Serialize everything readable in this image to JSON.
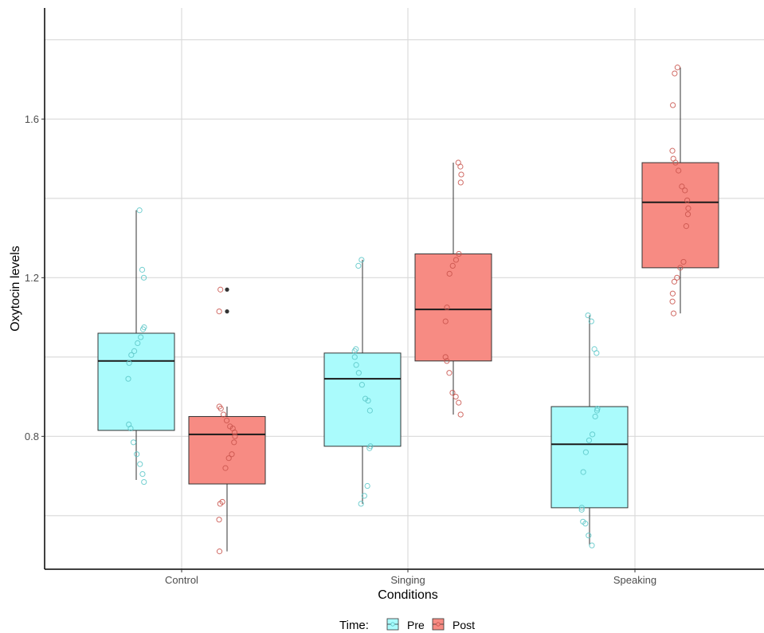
{
  "chart_data": {
    "type": "box",
    "title": "",
    "xlabel": "Conditions",
    "ylabel": "Oxytocin levels",
    "ylim": [
      0.465,
      1.88
    ],
    "y_ticks": [
      0.8,
      1.2,
      1.6
    ],
    "y_tick_labels": [
      "0.8",
      "1.2",
      "1.6"
    ],
    "y_minor_grid": [
      0.6,
      1.0,
      1.4,
      1.8
    ],
    "grid": true,
    "categories": [
      "Control",
      "Singing",
      "Speaking"
    ],
    "legend": {
      "title": "Time:",
      "position": "bottom",
      "items": [
        {
          "name": "Pre",
          "fill": "#aafbfc",
          "point": "#5cc7c8"
        },
        {
          "name": "Post",
          "fill": "#f78b83",
          "point": "#c9544c"
        }
      ]
    },
    "series": [
      {
        "name": "Pre",
        "boxes": [
          {
            "category": "Control",
            "whisker_low": 0.69,
            "q1": 0.815,
            "median": 0.99,
            "q3": 1.06,
            "whisker_high": 1.37,
            "outliers": []
          },
          {
            "category": "Singing",
            "whisker_low": 0.63,
            "q1": 0.775,
            "median": 0.945,
            "q3": 1.01,
            "whisker_high": 1.245,
            "outliers": []
          },
          {
            "category": "Speaking",
            "whisker_low": 0.525,
            "q1": 0.62,
            "median": 0.78,
            "q3": 0.875,
            "whisker_high": 1.105,
            "outliers": []
          }
        ],
        "points": [
          {
            "category": "Control",
            "values": [
              1.37,
              1.22,
              1.2,
              1.075,
              1.07,
              1.05,
              1.035,
              1.015,
              1.005,
              0.985,
              0.945,
              0.83,
              0.82,
              0.785,
              0.755,
              0.73,
              0.705,
              0.685
            ]
          },
          {
            "category": "Singing",
            "values": [
              1.245,
              1.23,
              1.02,
              1.015,
              1.0,
              0.98,
              0.96,
              0.93,
              0.895,
              0.89,
              0.865,
              0.775,
              0.77,
              0.675,
              0.65,
              0.63
            ]
          },
          {
            "category": "Speaking",
            "values": [
              1.105,
              1.09,
              1.02,
              1.01,
              0.87,
              0.865,
              0.85,
              0.805,
              0.79,
              0.76,
              0.71,
              0.62,
              0.615,
              0.585,
              0.58,
              0.55,
              0.525
            ]
          }
        ]
      },
      {
        "name": "Post",
        "boxes": [
          {
            "category": "Control",
            "whisker_low": 0.51,
            "q1": 0.68,
            "median": 0.805,
            "q3": 0.85,
            "whisker_high": 0.875,
            "outliers": [
              1.17,
              1.115
            ]
          },
          {
            "category": "Singing",
            "whisker_low": 0.855,
            "q1": 0.99,
            "median": 1.12,
            "q3": 1.26,
            "whisker_high": 1.49,
            "outliers": []
          },
          {
            "category": "Speaking",
            "whisker_low": 1.11,
            "q1": 1.225,
            "median": 1.39,
            "q3": 1.49,
            "whisker_high": 1.73,
            "outliers": []
          }
        ],
        "points": [
          {
            "category": "Control",
            "values": [
              1.17,
              1.115,
              0.875,
              0.87,
              0.855,
              0.84,
              0.825,
              0.82,
              0.81,
              0.8,
              0.785,
              0.755,
              0.745,
              0.72,
              0.635,
              0.63,
              0.59,
              0.51
            ]
          },
          {
            "category": "Singing",
            "values": [
              1.49,
              1.48,
              1.46,
              1.44,
              1.26,
              1.245,
              1.23,
              1.21,
              1.125,
              1.09,
              1.0,
              0.99,
              0.96,
              0.91,
              0.9,
              0.885,
              0.855
            ]
          },
          {
            "category": "Speaking",
            "values": [
              1.73,
              1.715,
              1.635,
              1.52,
              1.5,
              1.49,
              1.47,
              1.43,
              1.42,
              1.395,
              1.375,
              1.36,
              1.33,
              1.24,
              1.225,
              1.2,
              1.19,
              1.16,
              1.14,
              1.11
            ]
          }
        ]
      }
    ]
  }
}
